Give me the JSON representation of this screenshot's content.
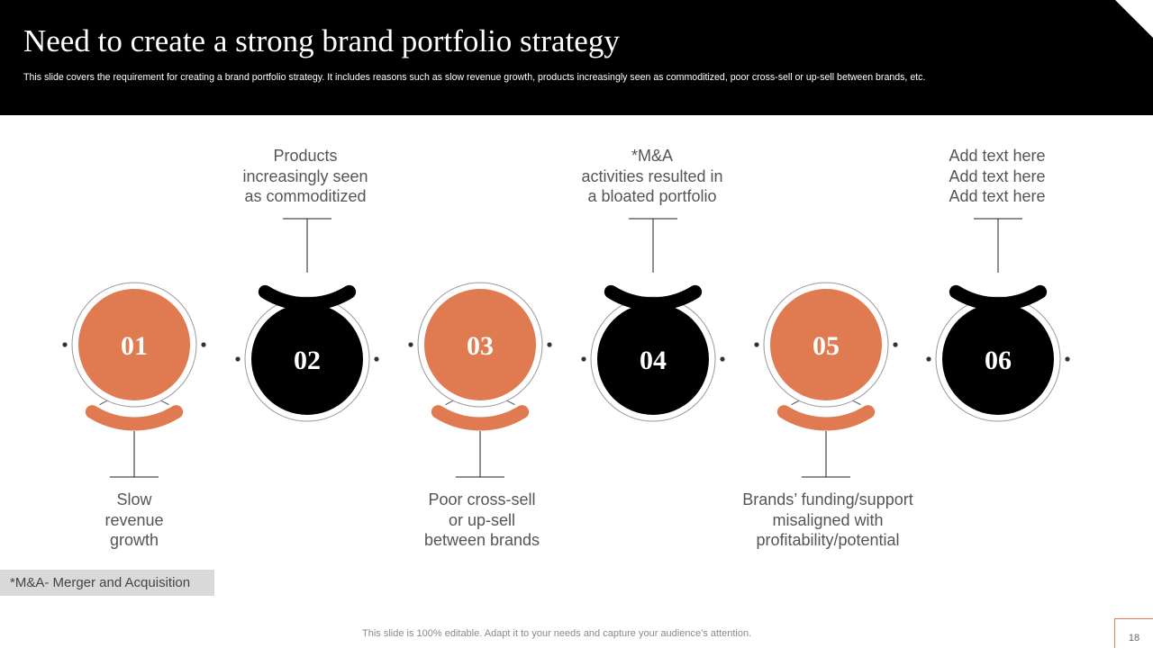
{
  "header": {
    "title": "Need to create a strong brand portfolio strategy",
    "subtitle": "This slide covers the requirement for creating a brand portfolio strategy. It includes reasons such as slow revenue growth, products increasingly seen as commoditized, poor cross-sell or up-sell between brands, etc."
  },
  "colors": {
    "orange": "#e07a50",
    "black": "#000000",
    "gray_text": "#555555"
  },
  "steps": [
    {
      "number": "01",
      "color": "orange",
      "caption": "Slow\nrevenue\ngrowth",
      "caption_side": "below"
    },
    {
      "number": "02",
      "color": "black",
      "caption": "Products\nincreasingly seen\nas commoditized",
      "caption_side": "above"
    },
    {
      "number": "03",
      "color": "orange",
      "caption": "Poor cross-sell\nor up-sell\nbetween brands",
      "caption_side": "below"
    },
    {
      "number": "04",
      "color": "black",
      "caption": "*M&A\nactivities  resulted in\na bloated portfolio",
      "caption_side": "above"
    },
    {
      "number": "05",
      "color": "orange",
      "caption": "Brands’ funding/support\nmisaligned with\nprofitability/potential",
      "caption_side": "below"
    },
    {
      "number": "06",
      "color": "black",
      "caption": "Add text here\nAdd text here\nAdd text here",
      "caption_side": "above"
    }
  ],
  "footnote": "*M&A- Merger and Acquisition",
  "footer": {
    "text": "This slide is 100% editable. Adapt it to your needs and capture your audience’s attention.",
    "page_number": "18"
  }
}
